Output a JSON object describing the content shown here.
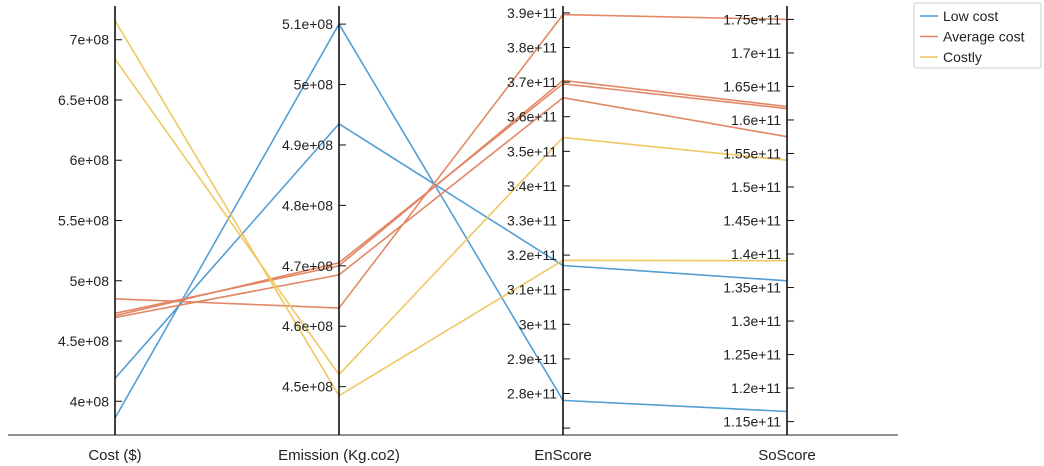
{
  "chart_data": {
    "type": "parallel_coordinates",
    "axes": [
      {
        "label": "Cost ($)",
        "range": [
          372000000,
          728000000
        ],
        "ticks": [
          {
            "value": 400000000,
            "label": "4e+08"
          },
          {
            "value": 450000000,
            "label": "4.5e+08"
          },
          {
            "value": 500000000,
            "label": "5e+08"
          },
          {
            "value": 550000000,
            "label": "5.5e+08"
          },
          {
            "value": 600000000,
            "label": "6e+08"
          },
          {
            "value": 650000000,
            "label": "6.5e+08"
          },
          {
            "value": 700000000,
            "label": "7e+08"
          }
        ]
      },
      {
        "label": "Emission (Kg.co2)",
        "range": [
          442000000,
          513000000
        ],
        "ticks": [
          {
            "value": 450000000,
            "label": "4.5e+08"
          },
          {
            "value": 460000000,
            "label": "4.6e+08"
          },
          {
            "value": 470000000,
            "label": "4.7e+08"
          },
          {
            "value": 480000000,
            "label": "4.8e+08"
          },
          {
            "value": 490000000,
            "label": "4.9e+08"
          },
          {
            "value": 500000000,
            "label": "5e+08"
          },
          {
            "value": 510000000,
            "label": "5.1e+08"
          }
        ]
      },
      {
        "label": "EnScore",
        "range": [
          268000000000,
          392000000000
        ],
        "ticks": [
          {
            "value": 270000000000,
            "label": ""
          },
          {
            "value": 280000000000,
            "label": "2.8e+11"
          },
          {
            "value": 290000000000,
            "label": "2.9e+11"
          },
          {
            "value": 300000000000,
            "label": "3e+11"
          },
          {
            "value": 310000000000,
            "label": "3.1e+11"
          },
          {
            "value": 320000000000,
            "label": "3.2e+11"
          },
          {
            "value": 330000000000,
            "label": "3.3e+11"
          },
          {
            "value": 340000000000,
            "label": "3.4e+11"
          },
          {
            "value": 350000000000,
            "label": "3.5e+11"
          },
          {
            "value": 360000000000,
            "label": "3.6e+11"
          },
          {
            "value": 370000000000,
            "label": "3.7e+11"
          },
          {
            "value": 380000000000,
            "label": "3.8e+11"
          },
          {
            "value": 390000000000,
            "label": "3.9e+11"
          }
        ]
      },
      {
        "label": "SoScore",
        "range": [
          113000000000,
          177000000000
        ],
        "ticks": [
          {
            "value": 115000000000,
            "label": "1.15e+11"
          },
          {
            "value": 120000000000,
            "label": "1.2e+11"
          },
          {
            "value": 125000000000,
            "label": "1.25e+11"
          },
          {
            "value": 130000000000,
            "label": "1.3e+11"
          },
          {
            "value": 135000000000,
            "label": "1.35e+11"
          },
          {
            "value": 140000000000,
            "label": "1.4e+11"
          },
          {
            "value": 145000000000,
            "label": "1.45e+11"
          },
          {
            "value": 150000000000,
            "label": "1.5e+11"
          },
          {
            "value": 155000000000,
            "label": "1.55e+11"
          },
          {
            "value": 160000000000,
            "label": "1.6e+11"
          },
          {
            "value": 165000000000,
            "label": "1.65e+11"
          },
          {
            "value": 170000000000,
            "label": "1.7e+11"
          },
          {
            "value": 175000000000,
            "label": "1.75e+11"
          }
        ]
      }
    ],
    "series": [
      {
        "name": "Low cost",
        "color": "#4a9ad1",
        "lines": [
          [
            386000000,
            510000000,
            278000000000,
            116500000000
          ],
          [
            419000000,
            493500000,
            317000000000,
            136000000000
          ]
        ]
      },
      {
        "name": "Average cost",
        "color": "#e1825f",
        "lines": [
          [
            485000000,
            463000000,
            389500000000,
            175000000000
          ],
          [
            473000000,
            470000000,
            370500000000,
            162000000000
          ],
          [
            471000000,
            470500000,
            369500000000,
            161700000000
          ],
          [
            469500000,
            468500000,
            365500000000,
            157500000000
          ]
        ]
      },
      {
        "name": "Costly",
        "color": "#efc55b",
        "lines": [
          [
            716000000,
            448500000,
            318500000000,
            139000000000
          ],
          [
            684000000,
            452000000,
            354000000000,
            154000000000
          ]
        ]
      }
    ],
    "legend": {
      "placement": "top-right"
    }
  }
}
